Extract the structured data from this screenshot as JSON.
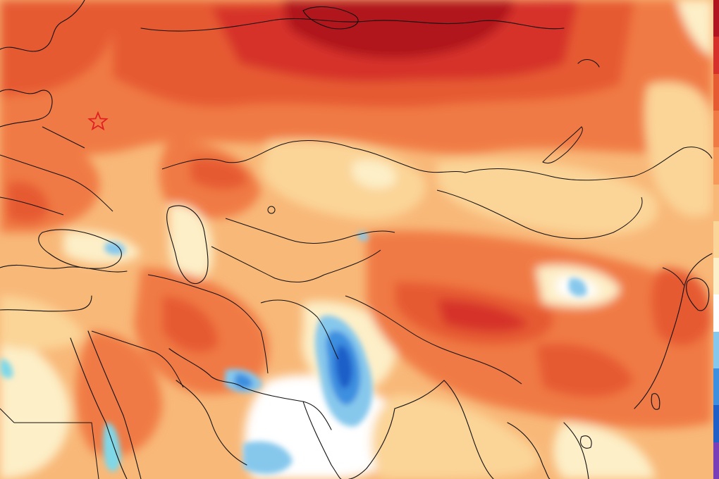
{
  "map": {
    "palette": {
      "deep_red": "#b0141e",
      "red": "#d6302a",
      "dark_orange": "#e65a32",
      "orange": "#f07a45",
      "light_orange": "#f59a5a",
      "peach": "#f8b878",
      "tan": "#fbd497",
      "pale_yellow": "#fdefc8",
      "white": "#ffffff",
      "light_blue": "#86c8ec",
      "blue": "#3d8fe0",
      "deep_blue": "#1f5fc8",
      "cyan": "#7fd8e8",
      "coastline": "#111111",
      "marker": "#e02020"
    },
    "marker": {
      "icon": "star-icon",
      "color": "#e02020"
    },
    "colorbar": [
      "#b0141e",
      "#d6302a",
      "#e65a32",
      "#f07a45",
      "#f59a5a",
      "#f8b878",
      "#fbd497",
      "#fdefc8",
      "#ffffff",
      "#86c8ec",
      "#3d8fe0",
      "#1f5fc8",
      "#7a3fb8"
    ]
  }
}
